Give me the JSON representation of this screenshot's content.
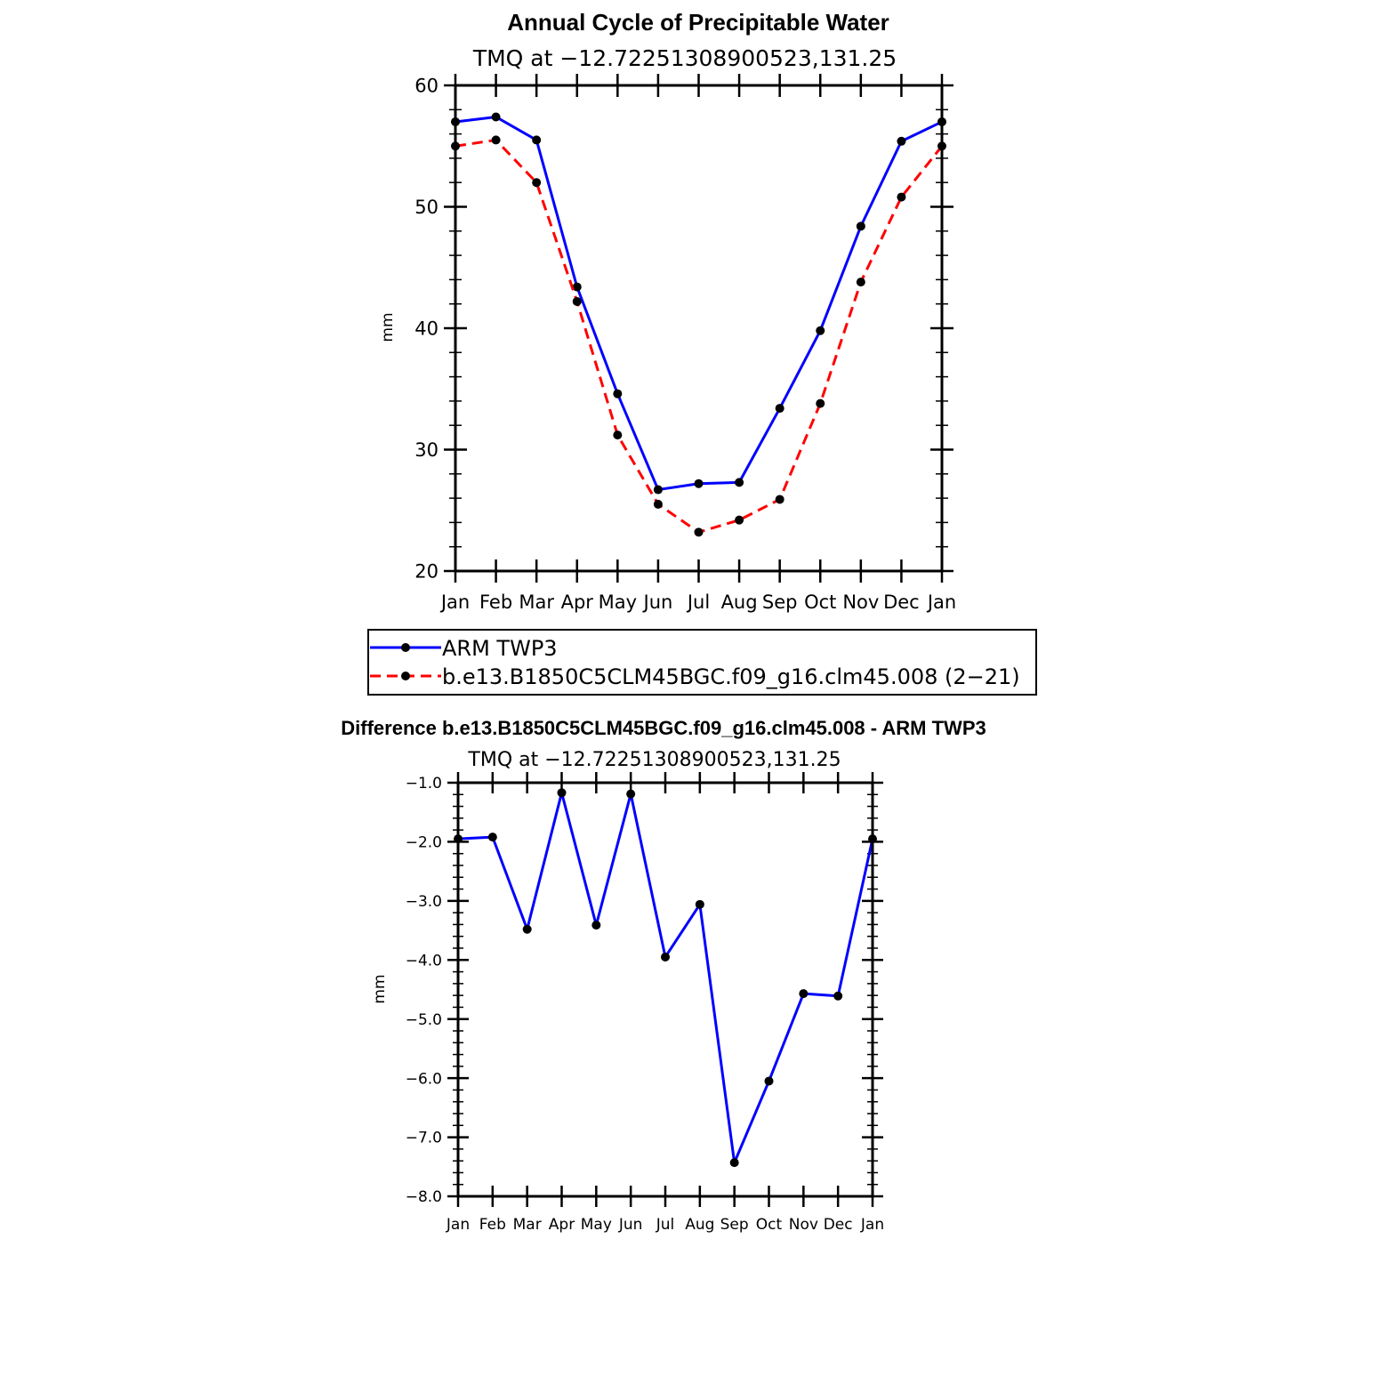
{
  "chart_data": [
    {
      "type": "line",
      "title": "Annual Cycle of Precipitable Water",
      "subtitle": "TMQ at −12.72251308900523,131.25",
      "ylabel": "mm",
      "xlabel": "",
      "ylim": [
        20,
        60
      ],
      "yticks": [
        20,
        30,
        40,
        50,
        60
      ],
      "ytick_labels": [
        "20",
        "30",
        "40",
        "50",
        "60"
      ],
      "categories": [
        "Jan",
        "Feb",
        "Mar",
        "Apr",
        "May",
        "Jun",
        "Jul",
        "Aug",
        "Sep",
        "Oct",
        "Nov",
        "Dec",
        "Jan"
      ],
      "series": [
        {
          "name": "ARM TWP3",
          "color": "#0000ff",
          "dash": "solid",
          "values": [
            57.0,
            57.4,
            55.5,
            43.4,
            34.6,
            26.7,
            27.2,
            27.3,
            33.4,
            39.8,
            48.4,
            55.4,
            57.0
          ]
        },
        {
          "name": "b.e13.B1850C5CLM45BGC.f09_g16.clm45.008 (2−21)",
          "color": "#ff0000",
          "dash": "dashed",
          "values": [
            55.0,
            55.5,
            52.0,
            42.2,
            31.2,
            25.5,
            23.2,
            24.2,
            25.9,
            33.8,
            43.8,
            50.8,
            55.0
          ]
        }
      ],
      "legend": "bottom"
    },
    {
      "type": "line",
      "title": "Difference b.e13.B1850C5CLM45BGC.f09_g16.clm45.008 - ARM TWP3",
      "subtitle": "TMQ at −12.72251308900523,131.25",
      "ylabel": "mm",
      "xlabel": "",
      "ylim": [
        -8.0,
        -1.0
      ],
      "yticks": [
        -8,
        -7,
        -6,
        -5,
        -4,
        -3,
        -2,
        -1
      ],
      "ytick_labels": [
        "−8.0",
        "−7.0",
        "−6.0",
        "−5.0",
        "−4.0",
        "−3.0",
        "−2.0",
        "−1.0"
      ],
      "categories": [
        "Jan",
        "Feb",
        "Mar",
        "Apr",
        "May",
        "Jun",
        "Jul",
        "Aug",
        "Sep",
        "Oct",
        "Nov",
        "Dec",
        "Jan"
      ],
      "series": [
        {
          "name": "difference",
          "color": "#0000ff",
          "dash": "solid",
          "values": [
            -1.95,
            -1.92,
            -3.48,
            -1.17,
            -3.41,
            -1.19,
            -3.95,
            -3.06,
            -7.43,
            -6.05,
            -4.57,
            -4.61,
            -1.95
          ]
        }
      ]
    }
  ]
}
